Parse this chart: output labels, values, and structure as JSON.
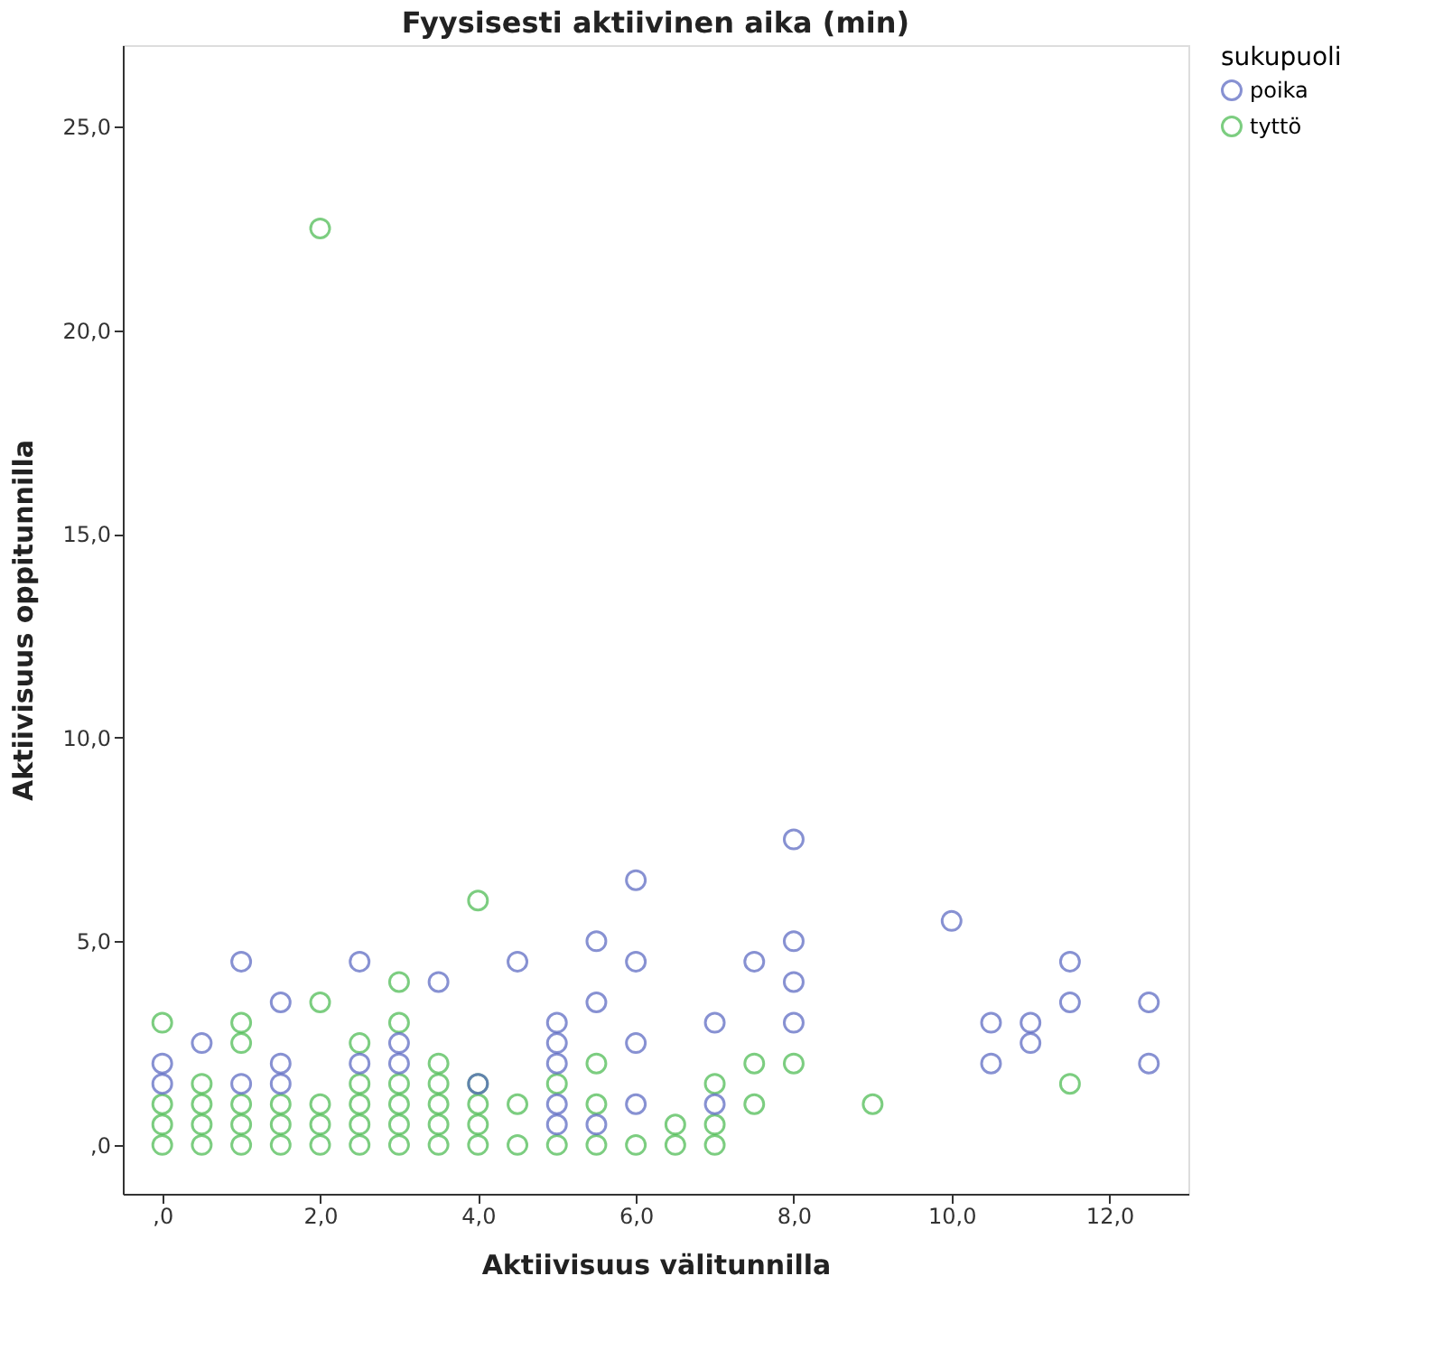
{
  "chart_data": {
    "type": "scatter",
    "title": "Fyysisesti aktiivinen aika (min)",
    "xlabel": "Aktiivisuus välitunnilla",
    "ylabel": "Aktiivisuus oppitunnilla",
    "legend_title": "sukupuoli",
    "legend": "top right",
    "marker": "circle",
    "grid": false,
    "xlim": [
      -0.5,
      13.0
    ],
    "ylim": [
      -1.2,
      27.0
    ],
    "xticks": [
      {
        "value": 0,
        "label": ",0"
      },
      {
        "value": 2,
        "label": "2,0"
      },
      {
        "value": 4,
        "label": "4,0"
      },
      {
        "value": 6,
        "label": "6,0"
      },
      {
        "value": 8,
        "label": "8,0"
      },
      {
        "value": 10,
        "label": "10,0"
      },
      {
        "value": 12,
        "label": "12,0"
      }
    ],
    "yticks": [
      {
        "value": 0,
        "label": ",0"
      },
      {
        "value": 5,
        "label": "5,0"
      },
      {
        "value": 10,
        "label": "10,0"
      },
      {
        "value": 15,
        "label": "15,0"
      },
      {
        "value": 20,
        "label": "20,0"
      },
      {
        "value": 25,
        "label": "25,0"
      }
    ],
    "series": [
      {
        "name": "poika",
        "color": "#5563c0",
        "x": [
          0,
          0,
          0.5,
          1,
          1,
          1.5,
          1.5,
          1.5,
          2.5,
          2.5,
          3,
          3,
          3.5,
          4,
          4.5,
          5,
          5,
          5,
          5,
          5,
          5.5,
          5.5,
          5.5,
          6,
          6,
          6,
          6,
          7,
          7,
          7.5,
          8,
          8,
          8,
          8,
          10,
          10.5,
          10.5,
          11,
          11,
          11.5,
          11.5,
          12.5,
          12.5
        ],
        "values": [
          1.5,
          2,
          2.5,
          1.5,
          4.5,
          1.5,
          2,
          3.5,
          2,
          4.5,
          2,
          2.5,
          4,
          1.5,
          4.5,
          0.5,
          1,
          2,
          2.5,
          3,
          0.5,
          3.5,
          5,
          1,
          2.5,
          4.5,
          6.5,
          1,
          3,
          4.5,
          3,
          4,
          5,
          7.5,
          5.5,
          2,
          3,
          2.5,
          3,
          3.5,
          4.5,
          2,
          3.5
        ]
      },
      {
        "name": "tyttö",
        "color": "#45b94b",
        "x": [
          0,
          0,
          0,
          0,
          0.5,
          0.5,
          0.5,
          0.5,
          1,
          1,
          1,
          1,
          1,
          1.5,
          1.5,
          1.5,
          2,
          2,
          2,
          2,
          2,
          2.5,
          2.5,
          2.5,
          2.5,
          2.5,
          3,
          3,
          3,
          3,
          3,
          3,
          3.5,
          3.5,
          3.5,
          3.5,
          3.5,
          4,
          4,
          4,
          4,
          4,
          4.5,
          4.5,
          5,
          5,
          5.5,
          5.5,
          5.5,
          6,
          6.5,
          6.5,
          7,
          7,
          7,
          7.5,
          7.5,
          8,
          9,
          11.5
        ],
        "values": [
          0,
          0.5,
          1,
          3,
          0,
          0.5,
          1,
          1.5,
          0,
          0.5,
          1,
          2.5,
          3,
          0,
          0.5,
          1,
          0,
          0.5,
          1,
          3.5,
          22.5,
          0,
          0.5,
          1,
          1.5,
          2.5,
          0,
          0.5,
          1,
          1.5,
          3,
          4,
          0,
          0.5,
          1,
          1.5,
          2,
          0,
          0.5,
          1,
          1.5,
          6,
          0,
          1,
          0,
          1.5,
          0,
          1,
          2,
          0,
          0,
          0.5,
          0,
          0.5,
          1.5,
          1,
          2,
          2,
          1,
          1.5
        ]
      }
    ]
  }
}
